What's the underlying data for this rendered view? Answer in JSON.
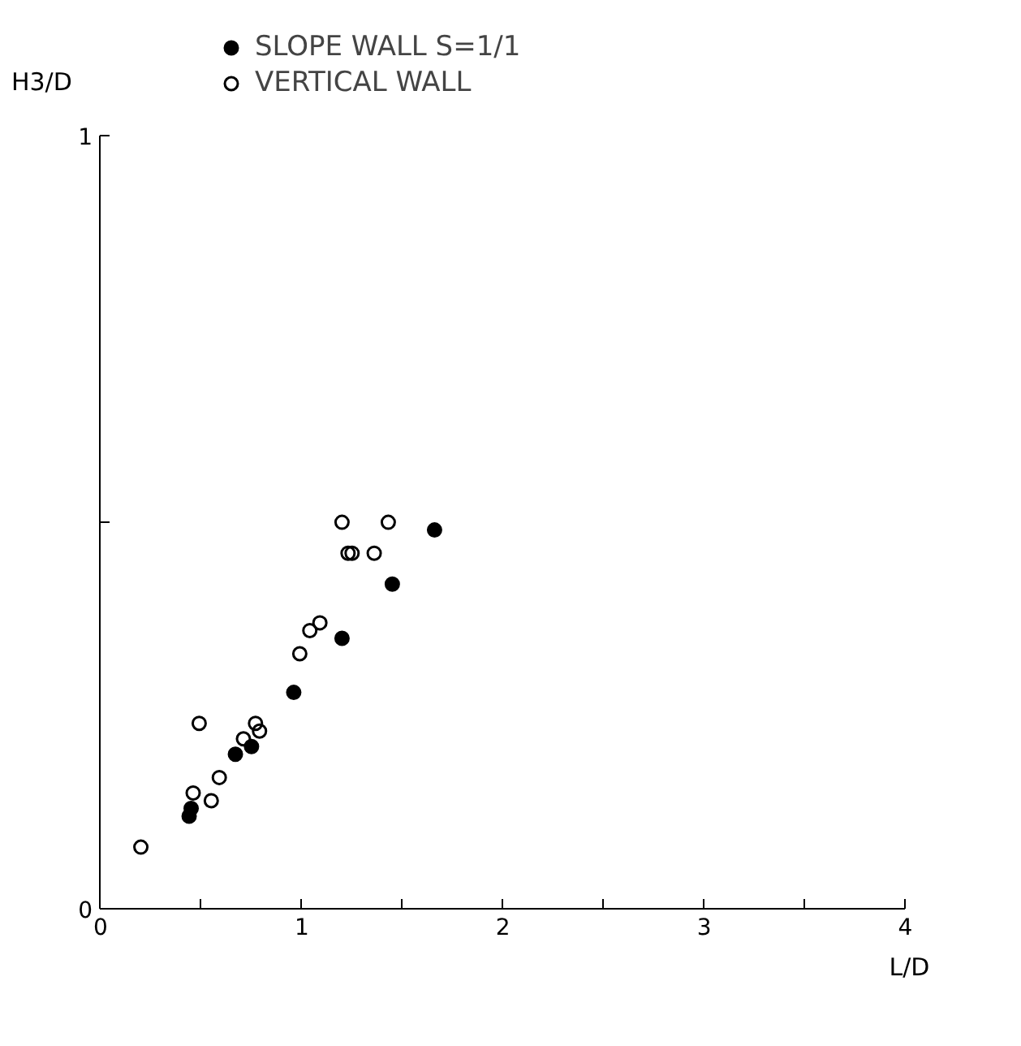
{
  "chart_data": {
    "type": "scatter",
    "xlabel": "L/D",
    "ylabel": "H3/D",
    "xlim": [
      0,
      4
    ],
    "ylim": [
      0,
      1
    ],
    "xticks": [
      0,
      {
        "value": 0.5,
        "label": null
      },
      1,
      {
        "value": 1.5,
        "label": null
      },
      2,
      {
        "value": 2.5,
        "label": null
      },
      3,
      {
        "value": 3.5,
        "label": null
      },
      4
    ],
    "yticks": [
      0,
      {
        "value": 0.5,
        "label": null
      },
      1
    ],
    "grid": false,
    "legend": "top",
    "marker": "circle",
    "series": [
      {
        "name": "SLOPE WALL S=1/1",
        "color": "#000000",
        "x": [
          0.44,
          0.45,
          0.67,
          0.75,
          0.96,
          1.2,
          1.45,
          1.66
        ],
        "values": [
          0.12,
          0.13,
          0.2,
          0.21,
          0.28,
          0.35,
          0.42,
          0.49
        ]
      },
      {
        "name": "VERTICAL WALL",
        "color": "#000000",
        "x": [
          0.2,
          0.46,
          0.55,
          0.59,
          0.49,
          0.71,
          0.77,
          0.79,
          0.99,
          1.04,
          1.09,
          1.2,
          1.23,
          1.25,
          1.36,
          1.43
        ],
        "values": [
          0.08,
          0.15,
          0.14,
          0.17,
          0.24,
          0.22,
          0.24,
          0.23,
          0.33,
          0.36,
          0.37,
          0.5,
          0.46,
          0.46,
          0.46,
          0.5
        ]
      }
    ]
  }
}
